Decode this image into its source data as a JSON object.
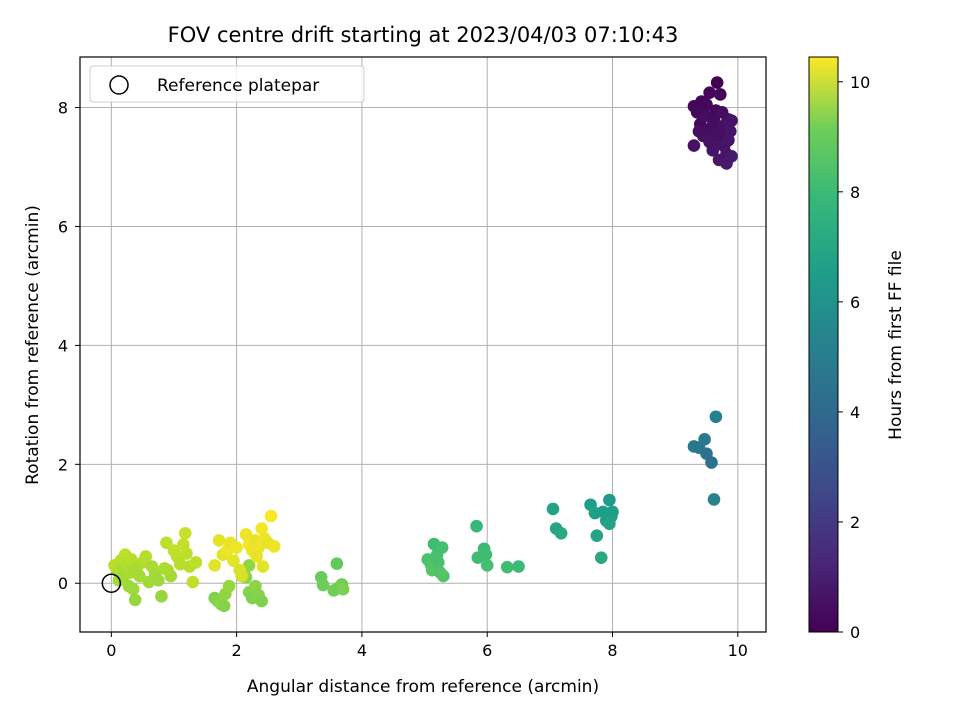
{
  "chart_data": {
    "type": "scatter",
    "title": "FOV centre drift starting at 2023/04/03 07:10:43",
    "xlabel": "Angular distance from reference (arcmin)",
    "ylabel": "Rotation from reference (arcmin)",
    "xlim": [
      -0.5,
      10.45
    ],
    "ylim": [
      -0.82,
      8.85
    ],
    "xticks": [
      0,
      2,
      4,
      6,
      8,
      10
    ],
    "yticks": [
      0,
      2,
      4,
      6,
      8
    ],
    "xtick_labels": [
      "0",
      "2",
      "4",
      "6",
      "8",
      "10"
    ],
    "ytick_labels": [
      "0",
      "2",
      "4",
      "6",
      "8"
    ],
    "grid": true,
    "colormap": "viridis",
    "colorbar": {
      "label": "Hours from first FF file",
      "range": [
        0,
        10.45
      ],
      "ticks": [
        0,
        2,
        4,
        6,
        8,
        10
      ],
      "tick_labels": [
        "0",
        "2",
        "4",
        "6",
        "8",
        "10"
      ]
    },
    "legend": {
      "position": "top-left",
      "entries": [
        {
          "label": "Reference platepar",
          "marker": "open-circle"
        }
      ]
    },
    "reference_point": {
      "x": 0,
      "y": 0
    },
    "points": [
      {
        "x": 9.3,
        "y": 8.02,
        "c": 0.1
      },
      {
        "x": 9.45,
        "y": 7.98,
        "c": 0.2
      },
      {
        "x": 9.55,
        "y": 8.25,
        "c": 0.15
      },
      {
        "x": 9.67,
        "y": 8.42,
        "c": 0.05
      },
      {
        "x": 9.72,
        "y": 8.22,
        "c": 0.1
      },
      {
        "x": 9.85,
        "y": 7.8,
        "c": 0.3
      },
      {
        "x": 9.35,
        "y": 7.92,
        "c": 0.25
      },
      {
        "x": 9.4,
        "y": 7.72,
        "c": 0.2
      },
      {
        "x": 9.48,
        "y": 7.86,
        "c": 0.35
      },
      {
        "x": 9.52,
        "y": 7.62,
        "c": 0.3
      },
      {
        "x": 9.58,
        "y": 7.52,
        "c": 0.4
      },
      {
        "x": 9.62,
        "y": 7.82,
        "c": 0.3
      },
      {
        "x": 9.68,
        "y": 7.68,
        "c": 0.45
      },
      {
        "x": 9.72,
        "y": 7.42,
        "c": 0.5
      },
      {
        "x": 9.76,
        "y": 7.55,
        "c": 0.4
      },
      {
        "x": 9.8,
        "y": 7.72,
        "c": 0.5
      },
      {
        "x": 9.9,
        "y": 7.78,
        "c": 0.55
      },
      {
        "x": 9.88,
        "y": 7.6,
        "c": 0.6
      },
      {
        "x": 9.78,
        "y": 7.35,
        "c": 0.55
      },
      {
        "x": 9.82,
        "y": 7.22,
        "c": 0.6
      },
      {
        "x": 9.7,
        "y": 7.12,
        "c": 0.65
      },
      {
        "x": 9.6,
        "y": 7.28,
        "c": 0.6
      },
      {
        "x": 9.65,
        "y": 7.95,
        "c": 0.25
      },
      {
        "x": 9.75,
        "y": 7.92,
        "c": 0.35
      },
      {
        "x": 9.3,
        "y": 7.36,
        "c": 0.5
      },
      {
        "x": 9.38,
        "y": 7.6,
        "c": 0.4
      },
      {
        "x": 9.45,
        "y": 7.52,
        "c": 0.45
      },
      {
        "x": 9.55,
        "y": 7.42,
        "c": 0.5
      },
      {
        "x": 9.9,
        "y": 7.18,
        "c": 0.7
      },
      {
        "x": 9.82,
        "y": 7.06,
        "c": 0.7
      },
      {
        "x": 9.6,
        "y": 7.7,
        "c": 0.35
      },
      {
        "x": 9.85,
        "y": 7.45,
        "c": 0.6
      },
      {
        "x": 9.5,
        "y": 8.05,
        "c": 0.2
      },
      {
        "x": 9.42,
        "y": 8.1,
        "c": 0.15
      },
      {
        "x": 9.7,
        "y": 7.6,
        "c": 0.45
      },
      {
        "x": 9.65,
        "y": 7.38,
        "c": 0.55
      },
      {
        "x": 9.3,
        "y": 2.3,
        "c": 4.2
      },
      {
        "x": 9.38,
        "y": 2.28,
        "c": 4.1
      },
      {
        "x": 9.47,
        "y": 2.42,
        "c": 4.3
      },
      {
        "x": 9.5,
        "y": 2.18,
        "c": 4.0
      },
      {
        "x": 9.58,
        "y": 2.03,
        "c": 3.9
      },
      {
        "x": 9.65,
        "y": 2.8,
        "c": 4.6
      },
      {
        "x": 9.62,
        "y": 1.41,
        "c": 4.7
      },
      {
        "x": 7.05,
        "y": 1.25,
        "c": 6.0
      },
      {
        "x": 7.1,
        "y": 0.92,
        "c": 6.2
      },
      {
        "x": 7.18,
        "y": 0.84,
        "c": 6.3
      },
      {
        "x": 7.65,
        "y": 1.32,
        "c": 5.8
      },
      {
        "x": 7.72,
        "y": 1.18,
        "c": 5.9
      },
      {
        "x": 7.75,
        "y": 0.8,
        "c": 6.1
      },
      {
        "x": 7.82,
        "y": 0.43,
        "c": 6.3
      },
      {
        "x": 7.85,
        "y": 1.2,
        "c": 5.8
      },
      {
        "x": 7.9,
        "y": 1.05,
        "c": 5.9
      },
      {
        "x": 7.95,
        "y": 1.4,
        "c": 5.7
      },
      {
        "x": 7.98,
        "y": 1.12,
        "c": 5.8
      },
      {
        "x": 8.0,
        "y": 1.2,
        "c": 5.8
      },
      {
        "x": 7.95,
        "y": 1.0,
        "c": 6.0
      },
      {
        "x": 5.05,
        "y": 0.4,
        "c": 7.4
      },
      {
        "x": 5.1,
        "y": 0.32,
        "c": 7.5
      },
      {
        "x": 5.12,
        "y": 0.22,
        "c": 7.6
      },
      {
        "x": 5.15,
        "y": 0.66,
        "c": 7.2
      },
      {
        "x": 5.2,
        "y": 0.48,
        "c": 7.3
      },
      {
        "x": 5.22,
        "y": 0.35,
        "c": 7.4
      },
      {
        "x": 5.25,
        "y": 0.18,
        "c": 7.5
      },
      {
        "x": 5.28,
        "y": 0.6,
        "c": 7.3
      },
      {
        "x": 5.3,
        "y": 0.12,
        "c": 7.6
      },
      {
        "x": 5.18,
        "y": 0.42,
        "c": 7.4
      },
      {
        "x": 5.83,
        "y": 0.96,
        "c": 7.0
      },
      {
        "x": 5.85,
        "y": 0.43,
        "c": 7.2
      },
      {
        "x": 5.95,
        "y": 0.58,
        "c": 7.1
      },
      {
        "x": 5.98,
        "y": 0.48,
        "c": 7.2
      },
      {
        "x": 6.0,
        "y": 0.3,
        "c": 7.3
      },
      {
        "x": 6.32,
        "y": 0.27,
        "c": 7.2
      },
      {
        "x": 6.5,
        "y": 0.28,
        "c": 7.1
      },
      {
        "x": 3.35,
        "y": 0.1,
        "c": 8.0
      },
      {
        "x": 3.38,
        "y": -0.03,
        "c": 8.1
      },
      {
        "x": 3.55,
        "y": -0.12,
        "c": 8.2
      },
      {
        "x": 3.6,
        "y": 0.33,
        "c": 7.9
      },
      {
        "x": 3.62,
        "y": -0.08,
        "c": 8.1
      },
      {
        "x": 3.68,
        "y": -0.02,
        "c": 8.2
      },
      {
        "x": 3.7,
        "y": -0.1,
        "c": 8.3
      },
      {
        "x": 1.65,
        "y": -0.25,
        "c": 8.4
      },
      {
        "x": 1.7,
        "y": -0.3,
        "c": 8.5
      },
      {
        "x": 1.75,
        "y": -0.35,
        "c": 8.6
      },
      {
        "x": 1.8,
        "y": -0.38,
        "c": 8.5
      },
      {
        "x": 1.82,
        "y": -0.18,
        "c": 8.7
      },
      {
        "x": 1.88,
        "y": -0.05,
        "c": 8.8
      },
      {
        "x": 2.15,
        "y": 0.1,
        "c": 8.6
      },
      {
        "x": 2.2,
        "y": -0.15,
        "c": 8.5
      },
      {
        "x": 2.25,
        "y": -0.25,
        "c": 8.4
      },
      {
        "x": 2.3,
        "y": -0.05,
        "c": 8.6
      },
      {
        "x": 2.35,
        "y": -0.2,
        "c": 8.5
      },
      {
        "x": 2.4,
        "y": -0.3,
        "c": 8.4
      },
      {
        "x": 2.2,
        "y": 0.3,
        "c": 8.7
      },
      {
        "x": 2.12,
        "y": 0.18,
        "c": 8.8
      },
      {
        "x": 0.05,
        "y": 0.3,
        "c": 9.3
      },
      {
        "x": 0.1,
        "y": 0.2,
        "c": 9.2
      },
      {
        "x": 0.12,
        "y": 0.05,
        "c": 9.0
      },
      {
        "x": 0.15,
        "y": 0.38,
        "c": 9.3
      },
      {
        "x": 0.18,
        "y": 0.25,
        "c": 9.1
      },
      {
        "x": 0.2,
        "y": 0.12,
        "c": 9.0
      },
      {
        "x": 0.22,
        "y": 0.48,
        "c": 9.4
      },
      {
        "x": 0.25,
        "y": 0.32,
        "c": 9.2
      },
      {
        "x": 0.28,
        "y": -0.05,
        "c": 8.9
      },
      {
        "x": 0.3,
        "y": 0.18,
        "c": 9.1
      },
      {
        "x": 0.32,
        "y": 0.4,
        "c": 9.3
      },
      {
        "x": 0.35,
        "y": -0.1,
        "c": 8.9
      },
      {
        "x": 0.38,
        "y": -0.28,
        "c": 8.8
      },
      {
        "x": 0.4,
        "y": 0.25,
        "c": 9.1
      },
      {
        "x": 0.45,
        "y": 0.12,
        "c": 9.0
      },
      {
        "x": 0.5,
        "y": 0.35,
        "c": 9.2
      },
      {
        "x": 0.55,
        "y": 0.45,
        "c": 9.3
      },
      {
        "x": 0.6,
        "y": 0.02,
        "c": 9.0
      },
      {
        "x": 0.65,
        "y": 0.28,
        "c": 9.1
      },
      {
        "x": 0.7,
        "y": 0.15,
        "c": 9.0
      },
      {
        "x": 0.75,
        "y": 0.05,
        "c": 8.9
      },
      {
        "x": 0.8,
        "y": -0.22,
        "c": 8.8
      },
      {
        "x": 0.85,
        "y": 0.25,
        "c": 9.1
      },
      {
        "x": 0.88,
        "y": 0.68,
        "c": 9.4
      },
      {
        "x": 0.95,
        "y": 0.12,
        "c": 9.0
      },
      {
        "x": 1.0,
        "y": 0.55,
        "c": 9.5
      },
      {
        "x": 1.05,
        "y": 0.45,
        "c": 9.4
      },
      {
        "x": 1.1,
        "y": 0.32,
        "c": 9.3
      },
      {
        "x": 1.15,
        "y": 0.65,
        "c": 9.5
      },
      {
        "x": 1.18,
        "y": 0.84,
        "c": 9.6
      },
      {
        "x": 1.2,
        "y": 0.5,
        "c": 9.4
      },
      {
        "x": 1.25,
        "y": 0.28,
        "c": 9.3
      },
      {
        "x": 1.3,
        "y": 0.02,
        "c": 9.5
      },
      {
        "x": 1.35,
        "y": 0.35,
        "c": 9.4
      },
      {
        "x": 0.9,
        "y": 0.22,
        "c": 9.1
      },
      {
        "x": 1.65,
        "y": 0.3,
        "c": 10.0
      },
      {
        "x": 1.72,
        "y": 0.72,
        "c": 10.1
      },
      {
        "x": 1.78,
        "y": 0.48,
        "c": 10.0
      },
      {
        "x": 1.85,
        "y": 0.55,
        "c": 10.2
      },
      {
        "x": 1.9,
        "y": 0.68,
        "c": 10.1
      },
      {
        "x": 1.95,
        "y": 0.38,
        "c": 10.0
      },
      {
        "x": 2.0,
        "y": 0.6,
        "c": 10.2
      },
      {
        "x": 2.05,
        "y": 0.22,
        "c": 9.9
      },
      {
        "x": 2.08,
        "y": 0.12,
        "c": 9.8
      },
      {
        "x": 2.15,
        "y": 0.82,
        "c": 10.2
      },
      {
        "x": 2.2,
        "y": 0.65,
        "c": 10.3
      },
      {
        "x": 2.25,
        "y": 0.55,
        "c": 10.2
      },
      {
        "x": 2.3,
        "y": 0.72,
        "c": 10.1
      },
      {
        "x": 2.35,
        "y": 0.6,
        "c": 10.2
      },
      {
        "x": 2.4,
        "y": 0.92,
        "c": 10.3
      },
      {
        "x": 2.45,
        "y": 0.75,
        "c": 10.2
      },
      {
        "x": 2.5,
        "y": 0.68,
        "c": 10.1
      },
      {
        "x": 2.55,
        "y": 1.13,
        "c": 10.4
      },
      {
        "x": 2.6,
        "y": 0.62,
        "c": 10.2
      },
      {
        "x": 2.42,
        "y": 0.28,
        "c": 10.0
      },
      {
        "x": 2.32,
        "y": 0.45,
        "c": 10.1
      }
    ]
  }
}
